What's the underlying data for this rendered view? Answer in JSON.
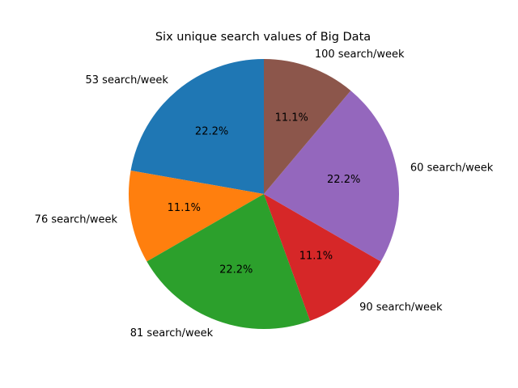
{
  "chart_data": {
    "type": "pie",
    "title": "Six unique search values of Big Data",
    "start_angle_deg": 90,
    "direction": "counterclockwise",
    "slices": [
      {
        "label": "53  search/week",
        "value": 22.2,
        "pct_label": "22.2%",
        "color": "#1f77b4"
      },
      {
        "label": "76 search/week",
        "value": 11.1,
        "pct_label": "11.1%",
        "color": "#ff7f0e"
      },
      {
        "label": "81 search/week",
        "value": 22.2,
        "pct_label": "22.2%",
        "color": "#2ca02c"
      },
      {
        "label": "90 search/week",
        "value": 11.1,
        "pct_label": "11.1%",
        "color": "#d62728"
      },
      {
        "label": "60 search/week",
        "value": 22.2,
        "pct_label": "22.2%",
        "color": "#9467bd"
      },
      {
        "label": "100 search/week",
        "value": 11.1,
        "pct_label": "11.1%",
        "color": "#8c564b"
      }
    ]
  }
}
